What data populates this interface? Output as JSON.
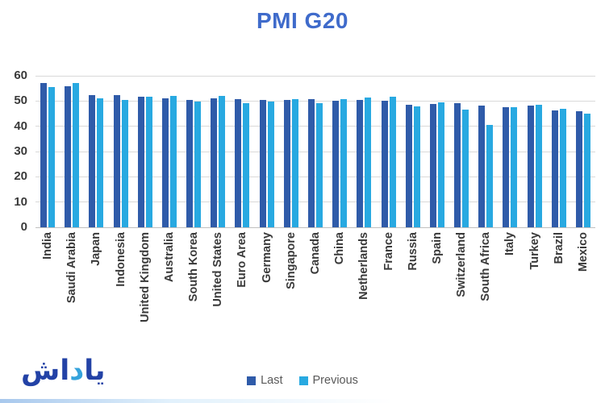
{
  "title": "PMI G20",
  "legend": {
    "last": "Last",
    "previous": "Previous"
  },
  "logo": {
    "part1": "یا",
    "part2": "د",
    "part3": "اش"
  },
  "colors": {
    "last": "#2f5ba9",
    "previous": "#28a9e1",
    "title": "#3f6bcb",
    "gridline": "#d9d9d9",
    "axis_text": "#3a3a3a",
    "legend_text": "#595959",
    "logo": "#2342a6",
    "logo_accent": "#35a3dc"
  },
  "chart_data": {
    "type": "bar",
    "title": "PMI G20",
    "categories": [
      "India",
      "Saudi Arabia",
      "Japan",
      "Indonesia",
      "United Kingdom",
      "Australia",
      "South Korea",
      "United States",
      "Euro Area",
      "Germany",
      "Singapore",
      "Canada",
      "China",
      "Netherlands",
      "France",
      "Russia",
      "Spain",
      "Switzerland",
      "South Africa",
      "Italy",
      "Turkey",
      "Brazil",
      "Mexico"
    ],
    "series": [
      {
        "name": "Last",
        "color_key": "last",
        "values": [
          57.2,
          55.9,
          52.2,
          52.4,
          51.6,
          51.1,
          50.4,
          51.0,
          50.7,
          50.3,
          50.5,
          50.6,
          50.0,
          50.5,
          50.2,
          48.6,
          48.7,
          49.0,
          48.3,
          47.5,
          48.1,
          46.4,
          46.0
        ]
      },
      {
        "name": "Previous",
        "color_key": "previous",
        "values": [
          55.4,
          57.2,
          51.0,
          50.5,
          51.7,
          51.9,
          49.7,
          52.0,
          49.2,
          49.7,
          50.6,
          49.0,
          50.9,
          51.3,
          51.7,
          47.8,
          49.6,
          46.6,
          40.5,
          47.7,
          48.4,
          47.0,
          45.1
        ]
      }
    ],
    "ylim": [
      0,
      60
    ],
    "yticks": [
      60,
      50,
      40,
      30,
      20,
      10,
      0
    ],
    "grid": true,
    "legend_position": "bottom"
  }
}
